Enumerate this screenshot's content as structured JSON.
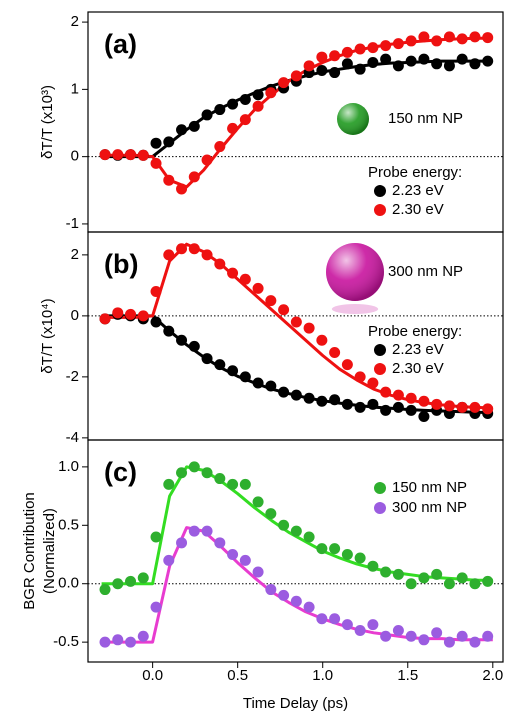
{
  "chart_data": [
    {
      "type": "scatter",
      "panel_label": "(a)",
      "y_label": "δT/T (x10³)",
      "annotation": {
        "text": "150 nm NP",
        "color": "#1f9a1f"
      },
      "legend_title": "Probe energy:",
      "legend": "lower right",
      "xlim": [
        -0.38,
        2.06
      ],
      "ylim": [
        -1.12,
        2.15
      ],
      "yticks": [
        2,
        1,
        0,
        -1
      ],
      "reference_line": 0,
      "x": [
        -0.28,
        -0.205,
        -0.13,
        -0.055,
        0.02,
        0.095,
        0.17,
        0.245,
        0.32,
        0.395,
        0.47,
        0.545,
        0.62,
        0.695,
        0.77,
        0.845,
        0.92,
        0.995,
        1.07,
        1.145,
        1.22,
        1.295,
        1.37,
        1.445,
        1.52,
        1.595,
        1.67,
        1.745,
        1.82,
        1.895,
        1.97
      ],
      "fit_x": [
        -0.3,
        -0.2,
        -0.1,
        0,
        0.1,
        0.2,
        0.3,
        0.4,
        0.5,
        0.6,
        0.7,
        0.8,
        0.9,
        1.0,
        1.1,
        1.2,
        1.3,
        1.4,
        1.5,
        1.6,
        1.7,
        1.8,
        1.9,
        2.0
      ],
      "series": [
        {
          "name": "2.23 eV",
          "color": "#000000",
          "fit_color": "#000000",
          "values": [
            0.03,
            0.02,
            0.03,
            0.02,
            0.2,
            0.22,
            0.4,
            0.45,
            0.62,
            0.7,
            0.78,
            0.85,
            0.92,
            1.0,
            1.02,
            1.12,
            1.25,
            1.28,
            1.25,
            1.38,
            1.3,
            1.4,
            1.45,
            1.35,
            1.42,
            1.45,
            1.38,
            1.35,
            1.45,
            1.38,
            1.42
          ],
          "fit": [
            0,
            0,
            0,
            0,
            0.2,
            0.4,
            0.58,
            0.72,
            0.84,
            0.95,
            1.05,
            1.13,
            1.2,
            1.26,
            1.3,
            1.34,
            1.37,
            1.39,
            1.4,
            1.41,
            1.42,
            1.42,
            1.42,
            1.42
          ]
        },
        {
          "name": "2.30 eV",
          "color": "#ee1111",
          "fit_color": "#ee1111",
          "values": [
            0.03,
            0.03,
            0.03,
            0.02,
            -0.1,
            -0.35,
            -0.48,
            -0.3,
            -0.05,
            0.15,
            0.42,
            0.55,
            0.75,
            0.95,
            1.1,
            1.2,
            1.35,
            1.48,
            1.5,
            1.55,
            1.6,
            1.62,
            1.65,
            1.68,
            1.72,
            1.78,
            1.72,
            1.78,
            1.75,
            1.78,
            1.77
          ],
          "fit": [
            0.02,
            0.02,
            0.02,
            0,
            -0.35,
            -0.45,
            -0.2,
            0.12,
            0.42,
            0.7,
            0.92,
            1.12,
            1.28,
            1.4,
            1.5,
            1.58,
            1.63,
            1.67,
            1.7,
            1.72,
            1.74,
            1.75,
            1.76,
            1.76
          ]
        }
      ]
    },
    {
      "type": "scatter",
      "panel_label": "(b)",
      "y_label": "δT/T (x10⁴)",
      "annotation": {
        "text": "300 nm NP",
        "color": "#c8139e"
      },
      "legend_title": "Probe energy:",
      "legend": "lower right",
      "xlim": [
        -0.38,
        2.06
      ],
      "ylim": [
        -4.07,
        2.75
      ],
      "yticks": [
        2,
        0,
        -2,
        -4
      ],
      "reference_line": 0,
      "x": [
        -0.28,
        -0.205,
        -0.13,
        -0.055,
        0.02,
        0.095,
        0.17,
        0.245,
        0.32,
        0.395,
        0.47,
        0.545,
        0.62,
        0.695,
        0.77,
        0.845,
        0.92,
        0.995,
        1.07,
        1.145,
        1.22,
        1.295,
        1.37,
        1.445,
        1.52,
        1.595,
        1.67,
        1.745,
        1.82,
        1.895,
        1.97
      ],
      "fit_x": [
        -0.3,
        -0.2,
        -0.1,
        0,
        0.1,
        0.2,
        0.3,
        0.4,
        0.5,
        0.6,
        0.7,
        0.8,
        0.9,
        1.0,
        1.1,
        1.2,
        1.3,
        1.4,
        1.5,
        1.6,
        1.7,
        1.8,
        1.9,
        2.0
      ],
      "series": [
        {
          "name": "2.23 eV",
          "color": "#000000",
          "fit_color": "#000000",
          "values": [
            -0.1,
            0.05,
            0.0,
            -0.1,
            -0.2,
            -0.5,
            -0.8,
            -1.0,
            -1.4,
            -1.6,
            -1.8,
            -2.0,
            -2.2,
            -2.3,
            -2.5,
            -2.6,
            -2.7,
            -2.8,
            -2.75,
            -2.9,
            -3.0,
            -2.9,
            -3.1,
            -3.0,
            -3.1,
            -3.3,
            -3.1,
            -3.2,
            -3.0,
            -3.2,
            -3.2
          ],
          "fit": [
            0,
            0,
            0,
            0,
            -0.5,
            -0.95,
            -1.35,
            -1.7,
            -1.98,
            -2.2,
            -2.4,
            -2.55,
            -2.68,
            -2.78,
            -2.86,
            -2.93,
            -2.99,
            -3.03,
            -3.07,
            -3.1,
            -3.12,
            -3.14,
            -3.16,
            -3.17
          ]
        },
        {
          "name": "2.30 eV",
          "color": "#ee1111",
          "fit_color": "#ee1111",
          "values": [
            -0.1,
            0.1,
            0.05,
            0.0,
            0.8,
            2.0,
            2.2,
            2.2,
            2.0,
            1.7,
            1.4,
            1.2,
            0.9,
            0.5,
            0.2,
            -0.2,
            -0.4,
            -0.8,
            -1.2,
            -1.6,
            -2.0,
            -2.2,
            -2.5,
            -2.6,
            -2.7,
            -2.8,
            -2.9,
            -2.95,
            -3.0,
            -3.0,
            -3.05
          ],
          "fit": [
            -0.05,
            -0.05,
            -0.05,
            0,
            1.8,
            2.35,
            2.1,
            1.7,
            1.2,
            0.7,
            0.2,
            -0.3,
            -0.8,
            -1.3,
            -1.75,
            -2.1,
            -2.4,
            -2.6,
            -2.75,
            -2.85,
            -2.92,
            -2.97,
            -3.0,
            -3.02
          ]
        }
      ]
    },
    {
      "type": "scatter",
      "panel_label": "(c)",
      "y_label": [
        "BGR Contribution",
        "(Normalized)"
      ],
      "x_label": "Time Delay (ps)",
      "legend": "upper right",
      "xlim": [
        -0.38,
        2.06
      ],
      "ylim": [
        -0.67,
        1.23
      ],
      "xticks": [
        {
          "value": 0,
          "label": "0.0"
        },
        {
          "value": 0.5,
          "label": "0.5"
        },
        {
          "value": 1,
          "label": "1.0"
        },
        {
          "value": 1.5,
          "label": "1.5"
        },
        {
          "value": 2,
          "label": "2.0"
        }
      ],
      "yticks": [
        {
          "value": 1,
          "label": "1.0"
        },
        0.5,
        {
          "value": 0,
          "label": "0.0"
        },
        -0.5
      ],
      "reference_line": 0,
      "x": [
        -0.28,
        -0.205,
        -0.13,
        -0.055,
        0.02,
        0.095,
        0.17,
        0.245,
        0.32,
        0.395,
        0.47,
        0.545,
        0.62,
        0.695,
        0.77,
        0.845,
        0.92,
        0.995,
        1.07,
        1.145,
        1.22,
        1.295,
        1.37,
        1.445,
        1.52,
        1.595,
        1.67,
        1.745,
        1.82,
        1.895,
        1.97
      ],
      "fit_x": [
        -0.3,
        -0.2,
        -0.1,
        0,
        0.1,
        0.2,
        0.3,
        0.4,
        0.5,
        0.6,
        0.7,
        0.8,
        0.9,
        1.0,
        1.1,
        1.2,
        1.3,
        1.4,
        1.5,
        1.6,
        1.7,
        1.8,
        1.9,
        2.0
      ],
      "series": [
        {
          "name": "150 nm NP",
          "color": "#2eaf2e",
          "fit_color": "#33dd22",
          "values": [
            -0.05,
            0.0,
            0.02,
            0.05,
            0.4,
            0.85,
            0.95,
            1.0,
            0.95,
            0.9,
            0.85,
            0.85,
            0.7,
            0.6,
            0.5,
            0.45,
            0.4,
            0.3,
            0.3,
            0.25,
            0.22,
            0.15,
            0.1,
            0.08,
            0.0,
            0.05,
            0.08,
            0.0,
            0.05,
            0.0,
            0.02
          ],
          "fit": [
            0,
            0,
            0,
            0,
            0.75,
            1.0,
            0.97,
            0.88,
            0.77,
            0.65,
            0.54,
            0.44,
            0.36,
            0.28,
            0.22,
            0.17,
            0.13,
            0.1,
            0.08,
            0.06,
            0.05,
            0.04,
            0.03,
            0.03
          ]
        },
        {
          "name": "300 nm NP",
          "color": "#9b5ce0",
          "fit_color": "#e83cd0",
          "values": [
            -0.5,
            -0.48,
            -0.5,
            -0.45,
            -0.2,
            0.2,
            0.35,
            0.45,
            0.45,
            0.35,
            0.25,
            0.2,
            0.1,
            -0.05,
            -0.1,
            -0.15,
            -0.2,
            -0.3,
            -0.3,
            -0.35,
            -0.4,
            -0.35,
            -0.45,
            -0.4,
            -0.45,
            -0.48,
            -0.42,
            -0.5,
            -0.45,
            -0.5,
            -0.45
          ],
          "fit": [
            -0.5,
            -0.5,
            -0.5,
            -0.5,
            0.15,
            0.48,
            0.45,
            0.32,
            0.18,
            0.05,
            -0.07,
            -0.16,
            -0.24,
            -0.3,
            -0.35,
            -0.39,
            -0.42,
            -0.44,
            -0.46,
            -0.47,
            -0.47,
            -0.48,
            -0.48,
            -0.48
          ]
        }
      ]
    }
  ]
}
